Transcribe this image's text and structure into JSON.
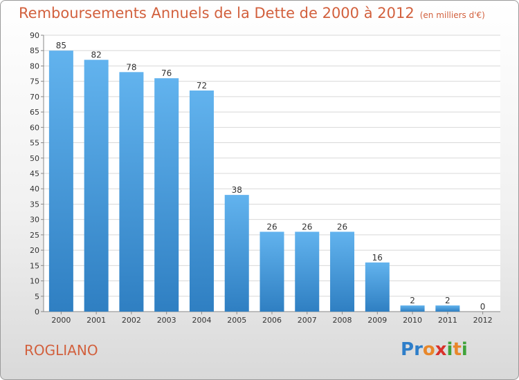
{
  "header": {
    "title": "Remboursements Annuels de la Dette de 2000 à 2012",
    "unit": "(en milliers d'€)"
  },
  "footer": {
    "commune": "ROGLIANO",
    "brand": "Proxiti"
  },
  "brand_letters": [
    {
      "ch": "P",
      "color": "#2e7ec9"
    },
    {
      "ch": "r",
      "color": "#2e7ec9"
    },
    {
      "ch": "o",
      "color": "#e8872a"
    },
    {
      "ch": "x",
      "color": "#d9312b"
    },
    {
      "ch": "i",
      "color": "#3fa33a"
    },
    {
      "ch": "t",
      "color": "#e8872a"
    },
    {
      "ch": "i",
      "color": "#3fa33a"
    }
  ],
  "colors": {
    "title": "#d2603d",
    "bar_top": "#62b3ee",
    "bar_bottom": "#2f7fc2"
  },
  "chart_data": {
    "type": "bar",
    "title": "Remboursements Annuels de la Dette de 2000 à 2012",
    "categories": [
      "2000",
      "2001",
      "2002",
      "2003",
      "2004",
      "2005",
      "2006",
      "2007",
      "2008",
      "2009",
      "2010",
      "2011",
      "2012"
    ],
    "values": [
      85,
      82,
      78,
      76,
      72,
      38,
      26,
      26,
      26,
      16,
      2,
      2,
      0
    ],
    "xlabel": "",
    "ylabel": "",
    "ylim": [
      0,
      90
    ],
    "yticks": [
      0,
      5,
      10,
      15,
      20,
      25,
      30,
      35,
      40,
      45,
      50,
      55,
      60,
      65,
      70,
      75,
      80,
      85,
      90
    ],
    "grid": true
  }
}
